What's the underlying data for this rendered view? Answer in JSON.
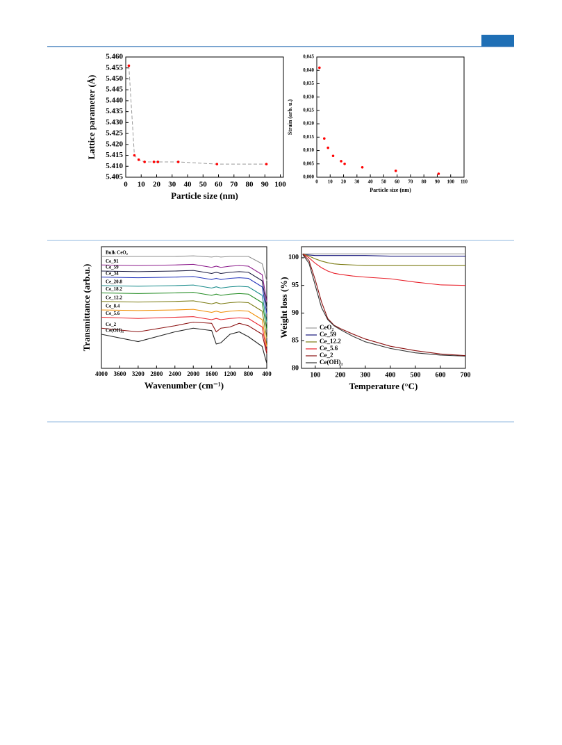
{
  "chart_data": [
    {
      "type": "scatter",
      "x_label": "Particle size (nm)",
      "y_label": "Lattice parameter (Å)",
      "x": [
        2,
        5.6,
        8.4,
        12.2,
        18.2,
        20.8,
        34,
        59,
        91
      ],
      "values": [
        5.456,
        5.415,
        5.413,
        5.412,
        5.412,
        5.412,
        5.412,
        5.411,
        5.411
      ],
      "color": "#ff0000",
      "line": "dashed",
      "xlim": [
        0,
        102
      ],
      "xticks": [
        0,
        10,
        20,
        30,
        40,
        50,
        60,
        70,
        80,
        90,
        100
      ],
      "ylim": [
        5.405,
        5.46
      ],
      "yticks": [
        5.405,
        {
          "value": 5.41,
          "label": "5.410"
        },
        5.415,
        {
          "value": 5.42,
          "label": "5.420"
        },
        5.425,
        {
          "value": 5.43,
          "label": "5.430"
        },
        5.435,
        {
          "value": 5.44,
          "label": "5.440"
        },
        5.445,
        {
          "value": 5.45,
          "label": "5.450"
        },
        5.455,
        {
          "value": 5.46,
          "label": "5.460"
        }
      ]
    },
    {
      "type": "scatter",
      "x_label": "Particle size (nm)",
      "y_label": "Strain (arb. u.)",
      "x": [
        2,
        5.6,
        8.4,
        12.2,
        18.2,
        20.8,
        34,
        59,
        91
      ],
      "values": [
        0.041,
        0.0145,
        0.011,
        0.008,
        0.006,
        0.005,
        0.0037,
        0.0024,
        0.0013
      ],
      "color": "#ff0000",
      "xlim": [
        0,
        110
      ],
      "xticks": [
        0,
        10,
        20,
        30,
        40,
        50,
        60,
        70,
        80,
        90,
        100,
        110
      ],
      "ylim": [
        0,
        0.045
      ],
      "yticks": [
        {
          "value": 0,
          "label": "0,000"
        },
        {
          "value": 0.005,
          "label": "0,005"
        },
        {
          "value": 0.01,
          "label": "0,010"
        },
        {
          "value": 0.015,
          "label": "0,015"
        },
        {
          "value": 0.02,
          "label": "0,020"
        },
        {
          "value": 0.025,
          "label": "0,025"
        },
        {
          "value": 0.03,
          "label": "0,030"
        },
        {
          "value": 0.035,
          "label": "0,035"
        },
        {
          "value": 0.04,
          "label": "0,040"
        },
        {
          "value": 0.045,
          "label": "0,045"
        }
      ]
    },
    {
      "type": "line",
      "x_label": "Wavenumber (cm⁻¹)",
      "y_label": "Transmittance (arb.u.)",
      "legend": "inline",
      "x": [
        4000,
        3200,
        2400,
        2000,
        1600,
        1500,
        1400,
        1200,
        1000,
        800,
        500,
        400
      ],
      "series": [
        {
          "name": "Bulk CeO₂",
          "color": "#8c8c8c",
          "values": [
            92,
            92,
            92,
            92.5,
            91.5,
            92,
            91.5,
            92,
            92,
            92,
            86,
            72
          ]
        },
        {
          "name": "Ce_91",
          "color": "#8b1a8b",
          "values": [
            85,
            84.5,
            85,
            85.5,
            83,
            84,
            83,
            84,
            84.5,
            84,
            77,
            55
          ]
        },
        {
          "name": "Ce_59",
          "color": "#1a1a40",
          "values": [
            80,
            79.5,
            80,
            80.5,
            78,
            79,
            78,
            79,
            79.5,
            79,
            72,
            50
          ]
        },
        {
          "name": "Ce_34",
          "color": "#2233bb",
          "values": [
            75,
            74.5,
            75,
            75.5,
            73,
            74,
            73,
            74,
            74.5,
            74,
            67,
            45
          ]
        },
        {
          "name": "Ce_20.8",
          "color": "#168a8a",
          "values": [
            68,
            67.5,
            68,
            68.5,
            66,
            67,
            66,
            67,
            67.5,
            67,
            60,
            38
          ]
        },
        {
          "name": "Ce_18.2",
          "color": "#1f8a1f",
          "values": [
            62,
            61.5,
            62,
            62.5,
            60,
            61,
            60,
            61,
            61.5,
            61,
            54,
            32
          ]
        },
        {
          "name": "Ce_12.2",
          "color": "#7a7a10",
          "values": [
            55,
            54.5,
            55,
            55.5,
            53,
            54,
            53,
            54,
            54.5,
            54,
            47,
            25
          ]
        },
        {
          "name": "Ce_8.4",
          "color": "#f08c00",
          "values": [
            48,
            47.5,
            48,
            48.5,
            46,
            47,
            46,
            47,
            47.5,
            47,
            40,
            18
          ]
        },
        {
          "name": "Ce_5.6",
          "color": "#e8202a",
          "values": [
            42,
            41,
            42,
            42.5,
            40,
            41,
            40,
            41,
            41.5,
            41,
            34,
            14
          ]
        },
        {
          "name": "Ce_2",
          "color": "#8b1010",
          "values": [
            33,
            30,
            35,
            38,
            37,
            30,
            33,
            34,
            37,
            35,
            28,
            12
          ]
        },
        {
          "name": "Ce(OH)₃",
          "color": "#222222",
          "values": [
            28,
            22,
            30,
            33,
            31,
            20,
            21,
            28,
            30,
            26,
            18,
            4
          ]
        }
      ],
      "xlim": [
        4000,
        400
      ],
      "xticks": [
        4000,
        3600,
        3200,
        2800,
        2400,
        2000,
        1600,
        1200,
        800,
        400
      ],
      "ylim": [
        0,
        100
      ]
    },
    {
      "type": "line",
      "x_label": "Temperature (°C)",
      "y_label": "Weight loss (%)",
      "legend": "lower left",
      "x": [
        50,
        75,
        100,
        125,
        150,
        175,
        200,
        250,
        300,
        400,
        500,
        600,
        700
      ],
      "series": [
        {
          "name": "CeO₂",
          "color": "#9a9a9a",
          "values": [
            100.7,
            100.7,
            100.7,
            100.7,
            100.7,
            100.7,
            100.7,
            100.7,
            100.7,
            100.7,
            100.7,
            100.7,
            100.7
          ]
        },
        {
          "name": "Ce_59",
          "color": "#14147a",
          "values": [
            100.6,
            100.5,
            100.4,
            100.4,
            100.4,
            100.4,
            100.4,
            100.4,
            100.4,
            100.3,
            100.3,
            100.3,
            100.3
          ]
        },
        {
          "name": "Ce_12.2",
          "color": "#7a7a10",
          "values": [
            100.7,
            100.3,
            99.8,
            99.4,
            99.1,
            98.9,
            98.8,
            98.7,
            98.6,
            98.6,
            98.6,
            98.6,
            98.6
          ]
        },
        {
          "name": "Ce_5.6",
          "color": "#e8202a",
          "values": [
            100.7,
            100,
            99,
            98.2,
            97.6,
            97.2,
            97,
            96.7,
            96.5,
            96.2,
            95.6,
            95.1,
            95
          ]
        },
        {
          "name": "Ce_2",
          "color": "#8b1010",
          "values": [
            100.7,
            99.5,
            96,
            92,
            89,
            87.8,
            87.2,
            86.2,
            85.3,
            84,
            83.2,
            82.6,
            82.3
          ]
        },
        {
          "name": "Ce(OH)₃",
          "color": "#333333",
          "values": [
            100.6,
            99,
            95,
            91,
            88.8,
            87.7,
            87,
            85.8,
            84.8,
            83.6,
            82.8,
            82.4,
            82.2
          ]
        }
      ],
      "xlim": [
        45,
        700
      ],
      "xticks": [
        100,
        200,
        300,
        400,
        500,
        600,
        700
      ],
      "ylim": [
        80,
        102
      ],
      "yticks": [
        80,
        85,
        90,
        95,
        100
      ]
    }
  ]
}
